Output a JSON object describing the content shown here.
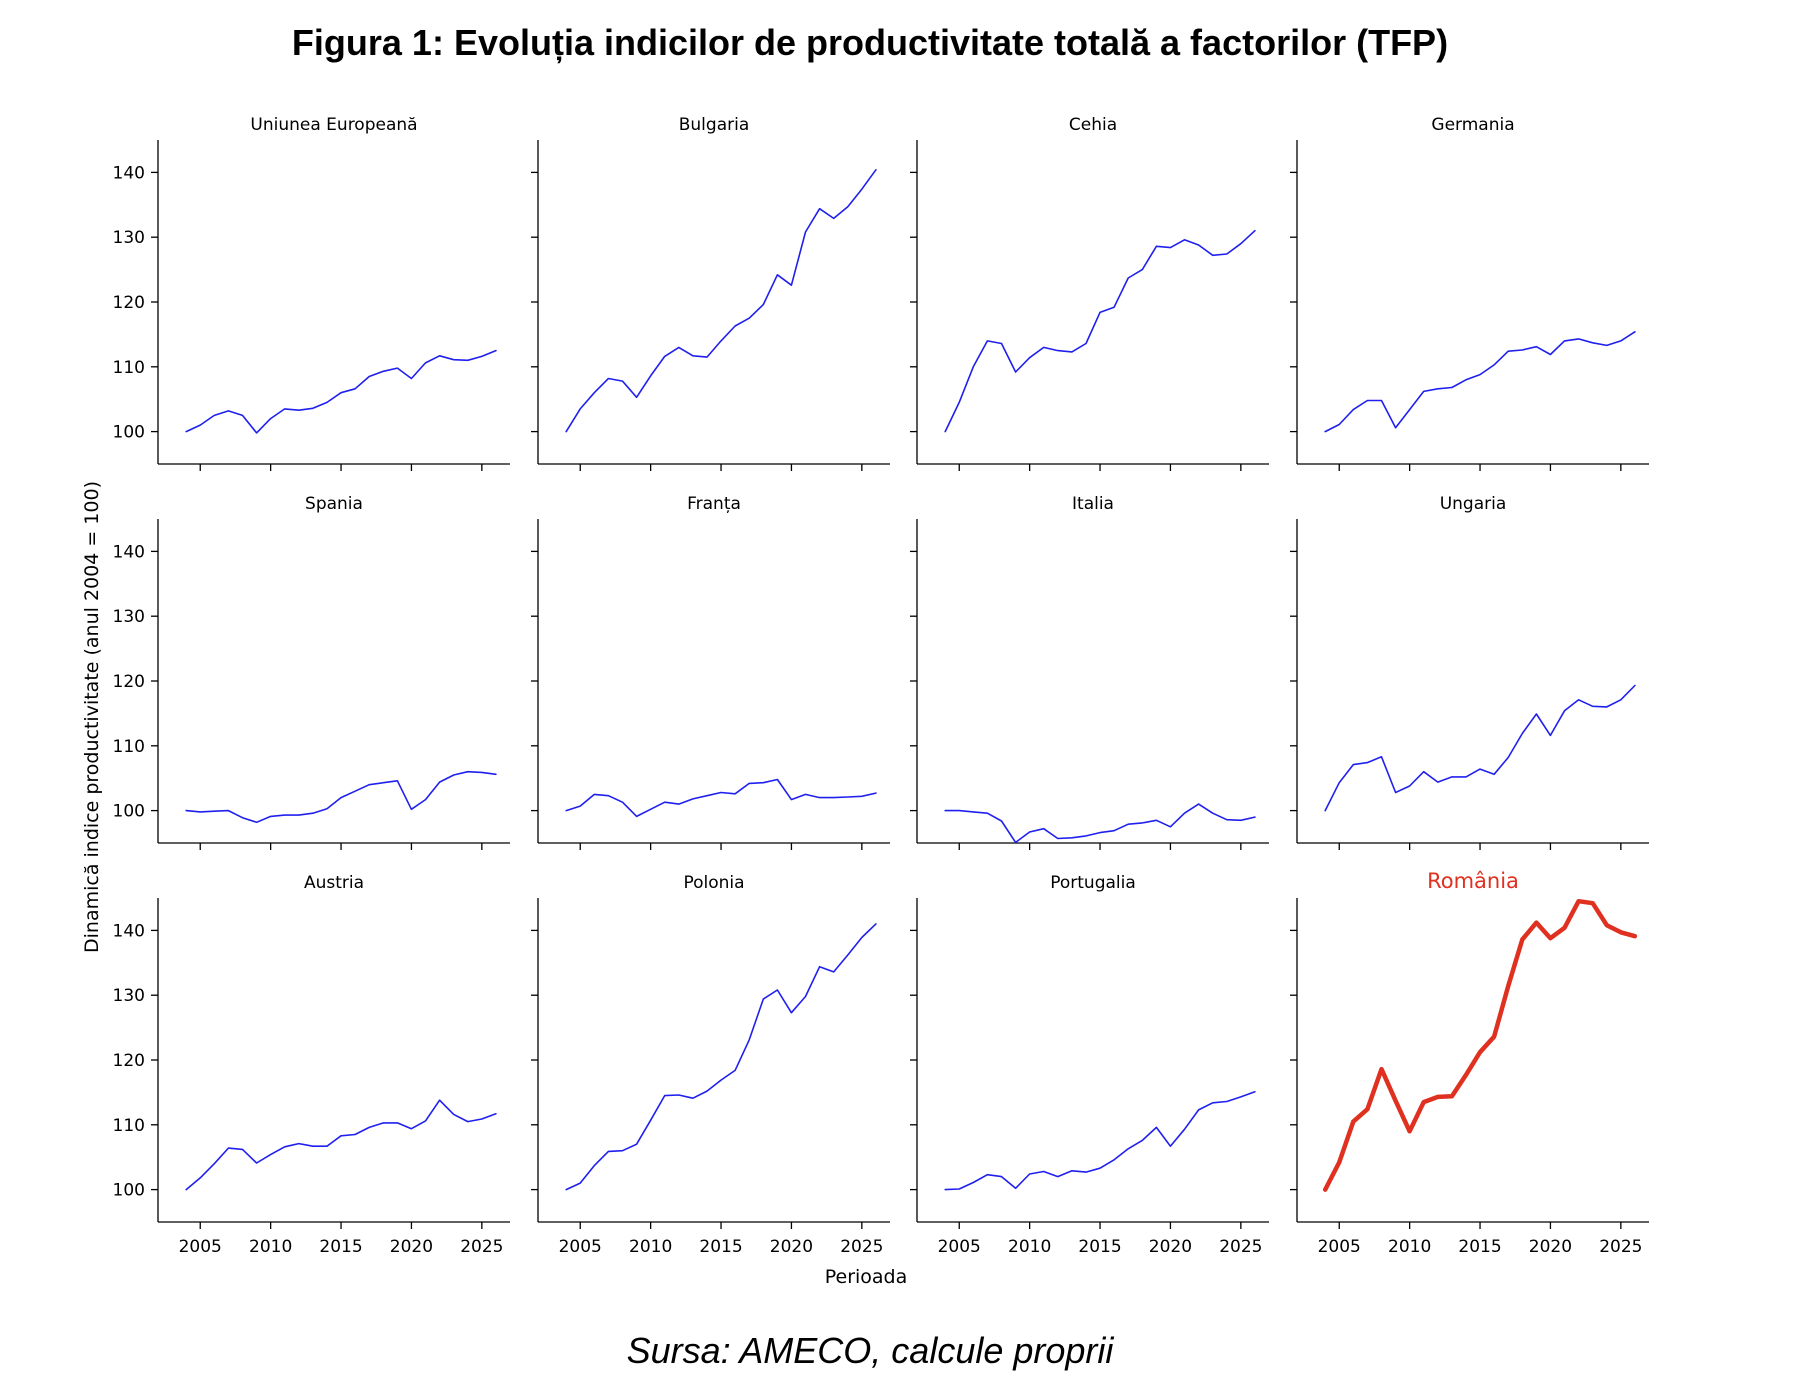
{
  "figure": {
    "title": "Figura 1: Evoluția indicilor de productivitate totală a factorilor (TFP)",
    "source": "Sursa: AMECO, calcule proprii"
  },
  "chart_data": {
    "type": "line",
    "ylabel": "Dinamică indice productivitate (anul 2004 = 100)",
    "xlabel": "Perioada",
    "xlim": [
      2002,
      2027
    ],
    "ylim": [
      95,
      145
    ],
    "xticks": [
      2005,
      2010,
      2015,
      2020,
      2025
    ],
    "yticks": [
      100,
      110,
      120,
      130,
      140
    ],
    "grid": false,
    "line_color": "#2020ee",
    "highlight_color": "#e03020",
    "x": [
      2004,
      2005,
      2006,
      2007,
      2008,
      2009,
      2010,
      2011,
      2012,
      2013,
      2014,
      2015,
      2016,
      2017,
      2018,
      2019,
      2020,
      2021,
      2022,
      2023,
      2024,
      2025,
      2026
    ],
    "panels": [
      {
        "name": "Uniunea Europeană",
        "values": [
          100,
          101,
          102.5,
          103.2,
          102.5,
          99.8,
          102,
          103.5,
          103.3,
          103.6,
          104.5,
          106,
          106.6,
          108.5,
          109.3,
          109.8,
          108.2,
          110.6,
          111.7,
          111.1,
          111,
          111.6,
          112.5
        ]
      },
      {
        "name": "Bulgaria",
        "values": [
          100,
          103.5,
          106,
          108.2,
          107.8,
          105.3,
          108.6,
          111.6,
          113,
          111.7,
          111.5,
          114,
          116.3,
          117.5,
          119.6,
          124.2,
          122.6,
          130.8,
          134.4,
          132.9,
          134.7,
          137.4,
          140.4
        ]
      },
      {
        "name": "Cehia",
        "values": [
          100,
          104.5,
          110,
          114,
          113.6,
          109.2,
          111.4,
          113,
          112.5,
          112.3,
          113.6,
          118.4,
          119.2,
          123.7,
          125,
          128.6,
          128.4,
          129.6,
          128.8,
          127.2,
          127.4,
          129,
          131
        ]
      },
      {
        "name": "Germania",
        "values": [
          100,
          101.1,
          103.4,
          104.8,
          104.8,
          100.6,
          103.4,
          106.2,
          106.6,
          106.8,
          108,
          108.8,
          110.3,
          112.4,
          112.6,
          113.1,
          111.9,
          114,
          114.3,
          113.7,
          113.3,
          114,
          115.4
        ]
      },
      {
        "name": "Spania",
        "values": [
          100,
          99.8,
          99.9,
          100,
          98.9,
          98.2,
          99.1,
          99.3,
          99.3,
          99.6,
          100.3,
          102,
          103,
          104,
          104.3,
          104.6,
          100.2,
          101.7,
          104.4,
          105.5,
          106,
          105.9,
          105.6
        ]
      },
      {
        "name": "Franța",
        "values": [
          100,
          100.7,
          102.5,
          102.3,
          101.3,
          99.1,
          100.2,
          101.3,
          101,
          101.8,
          102.3,
          102.8,
          102.6,
          104.2,
          104.3,
          104.8,
          101.7,
          102.5,
          102,
          102,
          102.1,
          102.2,
          102.7
        ]
      },
      {
        "name": "Italia",
        "values": [
          100,
          100,
          99.8,
          99.6,
          98.4,
          95.1,
          96.7,
          97.2,
          95.7,
          95.8,
          96.1,
          96.6,
          96.9,
          97.9,
          98.1,
          98.5,
          97.5,
          99.6,
          101,
          99.6,
          98.6,
          98.5,
          99
        ]
      },
      {
        "name": "Ungaria",
        "values": [
          100,
          104.3,
          107.1,
          107.4,
          108.3,
          102.8,
          103.8,
          106,
          104.4,
          105.2,
          105.2,
          106.4,
          105.6,
          108.2,
          111.9,
          114.9,
          111.6,
          115.4,
          117.1,
          116.1,
          116,
          117.1,
          119.3
        ]
      },
      {
        "name": "Austria",
        "values": [
          100,
          101.8,
          104,
          106.4,
          106.2,
          104.1,
          105.4,
          106.6,
          107.1,
          106.7,
          106.7,
          108.3,
          108.5,
          109.6,
          110.3,
          110.3,
          109.4,
          110.6,
          113.8,
          111.6,
          110.5,
          110.9,
          111.7
        ]
      },
      {
        "name": "Polonia",
        "values": [
          100,
          101,
          103.7,
          105.9,
          106,
          107,
          110.7,
          114.5,
          114.6,
          114.1,
          115.2,
          116.9,
          118.4,
          123.1,
          129.4,
          130.8,
          127.3,
          129.8,
          134.4,
          133.6,
          136.2,
          138.9,
          141
        ]
      },
      {
        "name": "Portugalia",
        "values": [
          100,
          100.1,
          101.1,
          102.3,
          102,
          100.2,
          102.4,
          102.8,
          102,
          102.9,
          102.7,
          103.3,
          104.6,
          106.3,
          107.6,
          109.6,
          106.7,
          109.3,
          112.3,
          113.4,
          113.6,
          114.3,
          115.1
        ]
      },
      {
        "name": "România",
        "values": [
          100,
          104.2,
          110.5,
          112.4,
          118.6,
          113.7,
          109,
          113.5,
          114.3,
          114.4,
          117.7,
          121.2,
          123.6,
          131.4,
          138.6,
          141.2,
          138.8,
          140.4,
          144.5,
          144.2,
          140.8,
          139.7,
          139.1
        ],
        "highlight": true
      }
    ]
  }
}
